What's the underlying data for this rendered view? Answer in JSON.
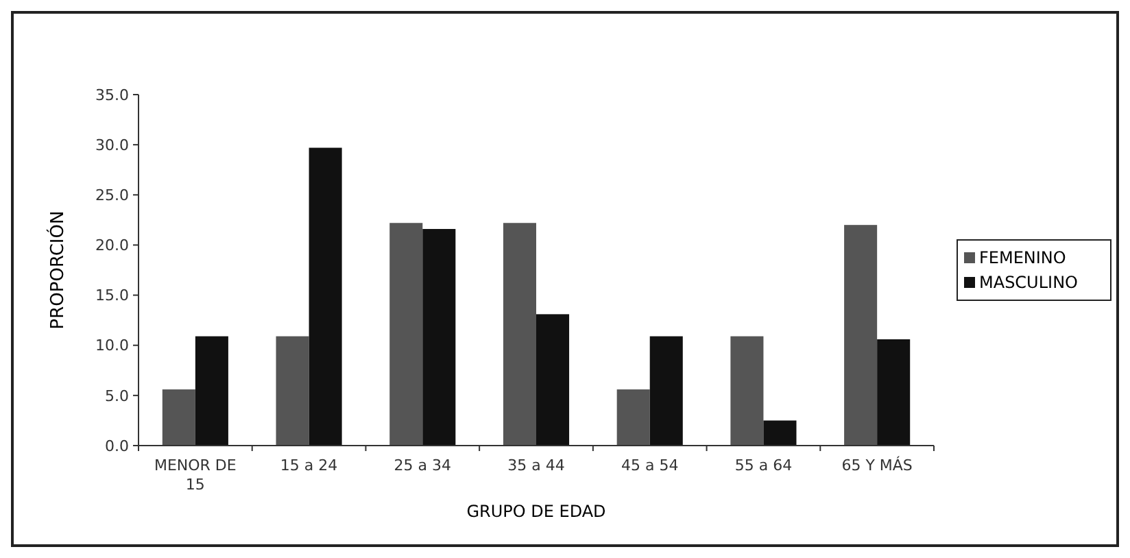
{
  "chart_data": {
    "type": "bar",
    "xlabel": "GRUPO DE EDAD",
    "ylabel": "PROPORCIÓN",
    "categories": [
      "MENOR DE 15",
      "15 a 24",
      "25 a 34",
      "35 a 44",
      "45 a 54",
      "55 a 64",
      "65 Y MÁS"
    ],
    "series": [
      {
        "name": "FEMENINO",
        "color": "#555555",
        "values": [
          5.6,
          10.9,
          22.2,
          22.2,
          5.6,
          10.9,
          22.0
        ]
      },
      {
        "name": "MASCULINO",
        "color": "#111111",
        "values": [
          10.9,
          29.7,
          21.6,
          13.1,
          10.9,
          2.5,
          10.6
        ]
      }
    ],
    "ylim": [
      0,
      35
    ],
    "yticks": [
      {
        "value": 0,
        "label": "0.0"
      },
      {
        "value": 5,
        "label": "5.0"
      },
      {
        "value": 10,
        "label": "10.0"
      },
      {
        "value": 15,
        "label": "15.0"
      },
      {
        "value": 20,
        "label": "20.0"
      },
      {
        "value": 25,
        "label": "25.0"
      },
      {
        "value": 30,
        "label": "30.0"
      },
      {
        "value": 35,
        "label": "35.0"
      }
    ],
    "grid": false,
    "legend": "right"
  }
}
